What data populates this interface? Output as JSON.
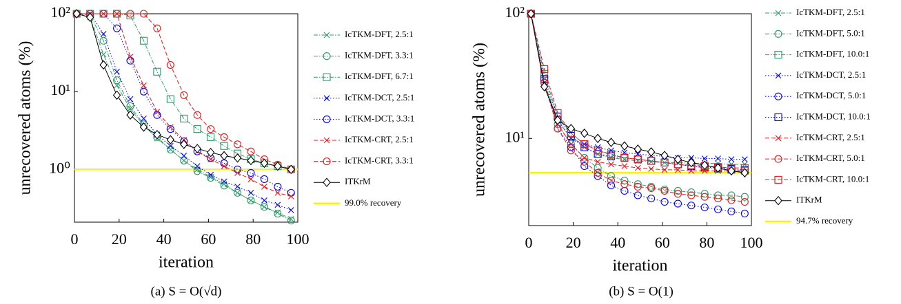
{
  "chart_data": [
    {
      "type": "line",
      "caption": "(a)  S = O(√d)",
      "xlabel": "iteration",
      "ylabel": "unrecovered atoms (%)",
      "log": true,
      "xlim": [
        0,
        100
      ],
      "xticks": [
        0,
        20,
        40,
        60,
        80,
        100
      ],
      "ylim": [
        0.21,
        100
      ],
      "yticks": [
        {
          "value": 1,
          "label": "10⁰"
        },
        {
          "value": 10,
          "label": "10¹"
        },
        {
          "value": 100,
          "label": "10²"
        }
      ],
      "x": [
        1,
        7,
        13,
        19,
        25,
        31,
        37,
        43,
        49,
        55,
        61,
        67,
        73,
        79,
        85,
        91,
        97
      ],
      "series": [
        {
          "name": "IcTKM-DFT, 2.5:1",
          "color": "#2f9a6a",
          "style": "dashdot",
          "marker": "x",
          "values": [
            100,
            90,
            30,
            12,
            6,
            3.7,
            2.5,
            1.8,
            1.3,
            1.0,
            0.8,
            0.65,
            0.5,
            0.4,
            0.33,
            0.28,
            0.23
          ]
        },
        {
          "name": "IcTKM-DFT, 3.3:1",
          "color": "#2f9a6a",
          "style": "dashdot",
          "marker": "circle",
          "values": [
            100,
            95,
            45,
            14,
            6.5,
            3.8,
            2.6,
            1.8,
            1.3,
            0.95,
            0.78,
            0.62,
            0.5,
            0.4,
            0.33,
            0.27,
            0.22
          ]
        },
        {
          "name": "IcTKM-DFT, 6.7:1",
          "color": "#2f9a6a",
          "style": "dashdot",
          "marker": "square",
          "values": [
            100,
            100,
            100,
            100,
            95,
            45,
            18,
            8,
            4.5,
            3.3,
            2.6,
            2.0,
            1.6,
            1.35,
            1.2,
            1.1,
            1.0
          ]
        },
        {
          "name": "IcTKM-DCT, 2.5:1",
          "color": "#0000ff",
          "style": "dotted",
          "marker": "x",
          "values": [
            100,
            100,
            55,
            18,
            8,
            4.5,
            2.8,
            2.0,
            1.5,
            1.1,
            0.85,
            0.7,
            0.6,
            0.5,
            0.4,
            0.35,
            0.3
          ]
        },
        {
          "name": "IcTKM-DCT, 3.3:1",
          "color": "#0000ff",
          "style": "dotted",
          "marker": "circle",
          "values": [
            100,
            100,
            100,
            65,
            25,
            10,
            5,
            3.3,
            2.3,
            1.7,
            1.4,
            1.2,
            1.0,
            0.9,
            0.75,
            0.6,
            0.5
          ]
        },
        {
          "name": "IcTKM-CRT, 2.5:1",
          "color": "#e41a1c",
          "style": "dashed",
          "marker": "x",
          "values": [
            100,
            100,
            100,
            100,
            28,
            12,
            5.5,
            3.5,
            2.4,
            1.7,
            1.35,
            1.1,
            0.9,
            0.75,
            0.6,
            0.5,
            0.45
          ]
        },
        {
          "name": "IcTKM-CRT, 3.3:1",
          "color": "#e41a1c",
          "style": "dashed",
          "marker": "circle",
          "values": [
            100,
            100,
            100,
            100,
            100,
            100,
            65,
            22,
            9,
            5,
            3.3,
            2.6,
            2.1,
            1.7,
            1.35,
            1.15,
            1.0
          ]
        },
        {
          "name": "ITKrM",
          "color": "#000000",
          "style": "solid",
          "marker": "diamond",
          "values": [
            100,
            90,
            22,
            9,
            5,
            3.5,
            2.8,
            2.4,
            2.1,
            1.85,
            1.65,
            1.5,
            1.4,
            1.3,
            1.2,
            1.1,
            1.0
          ]
        }
      ],
      "threshold": {
        "name": "99.0% recovery",
        "value": 1,
        "color": "#f5f01e"
      }
    },
    {
      "type": "line",
      "caption": "(b)  S = O(1)",
      "xlabel": "iteration",
      "ylabel": "unrecovered atoms (%)",
      "log": true,
      "xlim": [
        0,
        100
      ],
      "xticks": [
        0,
        20,
        40,
        60,
        80,
        100
      ],
      "ylim": [
        2,
        100
      ],
      "yticks": [
        {
          "value": 10,
          "label": "10¹"
        },
        {
          "value": 100,
          "label": "10²"
        }
      ],
      "x": [
        1,
        7,
        13,
        19,
        25,
        31,
        37,
        43,
        49,
        55,
        61,
        67,
        73,
        79,
        85,
        91,
        97
      ],
      "series": [
        {
          "name": "IcTKM-DFT, 2.5:1",
          "color": "#2f9a6a",
          "style": "dashdot",
          "marker": "x",
          "values": [
            100,
            28,
            14,
            10,
            8.5,
            7.5,
            7,
            6.8,
            6.6,
            6.5,
            6.4,
            6.4,
            6.3,
            6.3,
            6.3,
            6.2,
            6.2
          ]
        },
        {
          "name": "IcTKM-DFT, 5.0:1",
          "color": "#2f9a6a",
          "style": "dashdot",
          "marker": "circle",
          "values": [
            100,
            28,
            13,
            9,
            7,
            5.8,
            5,
            4.6,
            4.3,
            4.1,
            3.9,
            3.8,
            3.7,
            3.6,
            3.5,
            3.5,
            3.4
          ]
        },
        {
          "name": "IcTKM-DFT, 10.0:1",
          "color": "#2f9a6a",
          "style": "dashdot",
          "marker": "square",
          "values": [
            100,
            33,
            15,
            11,
            9,
            8,
            7.5,
            7,
            6.8,
            6.6,
            6.4,
            6.2,
            6.0,
            5.8,
            5.7,
            5.6,
            5.5
          ]
        },
        {
          "name": "IcTKM-DCT, 2.5:1",
          "color": "#0000ff",
          "style": "dotted",
          "marker": "x",
          "values": [
            100,
            27,
            14,
            10,
            9,
            8.5,
            8,
            7.7,
            7.5,
            7.3,
            7.2,
            7,
            7,
            6.9,
            6.9,
            6.8,
            6.8
          ]
        },
        {
          "name": "IcTKM-DCT, 5.0:1",
          "color": "#0000ff",
          "style": "dotted",
          "marker": "circle",
          "values": [
            100,
            28,
            12,
            8.5,
            6,
            5,
            4.2,
            3.8,
            3.5,
            3.3,
            3.1,
            3,
            2.9,
            2.8,
            2.7,
            2.6,
            2.5
          ]
        },
        {
          "name": "IcTKM-DCT, 10.0:1",
          "color": "#0000ff",
          "style": "dotted",
          "marker": "square",
          "values": [
            100,
            30,
            15,
            10.5,
            8.5,
            7.5,
            7.2,
            7,
            6.8,
            6.6,
            6.4,
            6.2,
            6.0,
            5.9,
            5.8,
            5.7,
            5.6
          ]
        },
        {
          "name": "IcTKM-CRT, 2.5:1",
          "color": "#e41a1c",
          "style": "dashed",
          "marker": "x",
          "values": [
            100,
            27,
            13,
            9,
            7,
            6.5,
            6.2,
            6,
            5.8,
            5.7,
            5.6,
            5.6,
            5.5,
            5.5,
            5.5,
            5.5,
            5.4
          ]
        },
        {
          "name": "IcTKM-CRT, 5.0:1",
          "color": "#e41a1c",
          "style": "dashed",
          "marker": "circle",
          "values": [
            100,
            28,
            12,
            8,
            6.5,
            5.3,
            4.6,
            4.3,
            4.1,
            4,
            3.8,
            3.6,
            3.5,
            3.4,
            3.3,
            3.2,
            3.1
          ]
        },
        {
          "name": "IcTKM-CRT, 10.0:1",
          "color": "#e41a1c",
          "style": "dashed",
          "marker": "square",
          "values": [
            100,
            36,
            16,
            11,
            9,
            8,
            7.4,
            7,
            6.8,
            6.6,
            6.4,
            6.2,
            6.1,
            6,
            5.9,
            5.8,
            5.8
          ]
        },
        {
          "name": "ITKrM",
          "color": "#000000",
          "style": "solid",
          "marker": "diamond",
          "values": [
            100,
            26,
            14,
            12,
            11,
            10,
            9.3,
            8.7,
            8.2,
            7.8,
            7.3,
            6.8,
            6.4,
            6.1,
            5.8,
            5.5,
            5.3
          ]
        }
      ],
      "threshold": {
        "name": "94.7% recovery",
        "value": 5.3,
        "color": "#f5f01e"
      }
    }
  ]
}
